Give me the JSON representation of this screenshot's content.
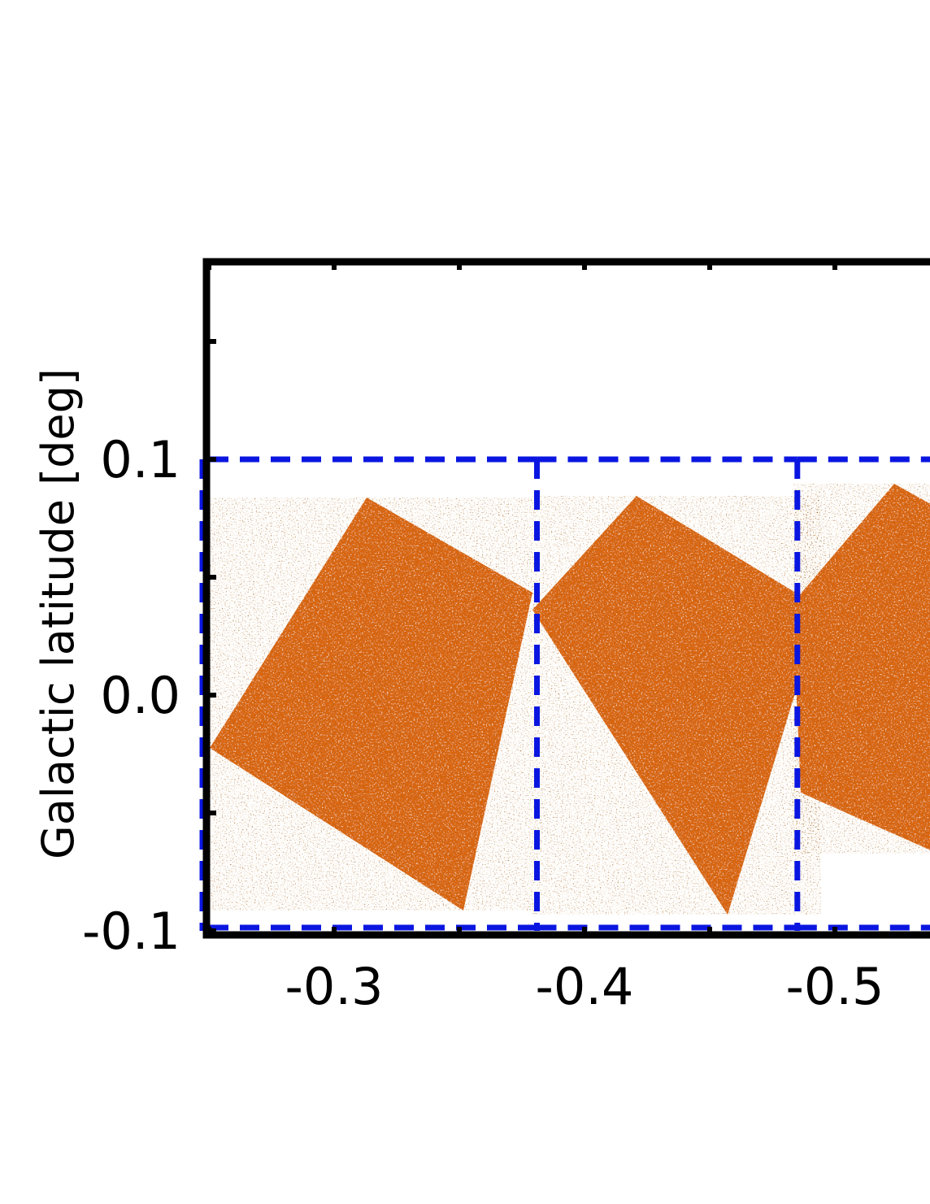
{
  "chart_data": {
    "type": "heatmap",
    "title": "",
    "xlabel": "",
    "ylabel": "Galactic latitude [deg]",
    "x_ticks": [
      "-0.3",
      "-0.4",
      "-0.5"
    ],
    "y_ticks": [
      "0.1",
      "0.0",
      "-0.1"
    ],
    "x_tick_values": [
      -0.3,
      -0.4,
      -0.5
    ],
    "y_tick_values": [
      0.1,
      0.0,
      -0.1
    ],
    "xlim": [
      -0.25,
      -0.54
    ],
    "ylim": [
      -0.1,
      0.185
    ],
    "x_axis_reversed": true,
    "grid": false,
    "regions": [
      {
        "name": "",
        "l_range": [
          -0.25,
          -0.381
        ],
        "b_range": [
          -0.1,
          0.1
        ]
      },
      {
        "name": "",
        "l_range": [
          -0.381,
          -0.485
        ],
        "b_range": [
          -0.1,
          0.1
        ]
      },
      {
        "name": "",
        "l_range": [
          -0.485,
          -0.54
        ],
        "b_range": [
          -0.1,
          0.1
        ]
      }
    ],
    "colors": {
      "frame": "#000000",
      "region_lines": "#0a16e0",
      "map_base": "#d9650f",
      "map_dark": "#6b2a05",
      "map_light": "#fff4dc"
    }
  }
}
